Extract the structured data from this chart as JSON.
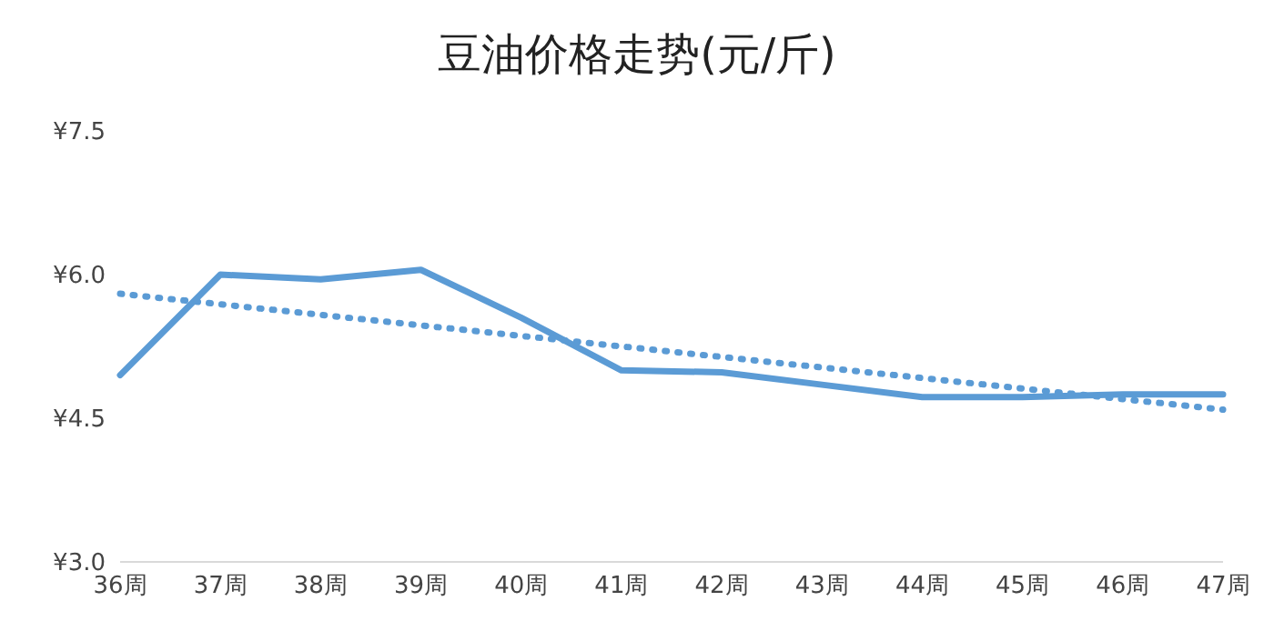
{
  "chart_data": {
    "type": "line",
    "title": "豆油价格走势(元/斤)",
    "categories": [
      "36周",
      "37周",
      "38周",
      "39周",
      "40周",
      "41周",
      "42周",
      "43周",
      "44周",
      "45周",
      "46周",
      "47周"
    ],
    "series": [
      {
        "color": "#5b9bd5",
        "values": [
          4.95,
          6.0,
          5.95,
          6.05,
          5.55,
          5.0,
          4.98,
          4.85,
          4.72,
          4.72,
          4.75,
          4.75
        ],
        "line_style": "solid"
      },
      {
        "type": "line",
        "color": "#5b9bd5",
        "values": [
          5.8,
          5.69,
          5.58,
          5.47,
          5.36,
          5.25,
          5.14,
          5.03,
          4.92,
          4.81,
          4.7,
          4.59
        ],
        "line_style": "dotted"
      }
    ],
    "ylim": [
      3.0,
      7.5
    ],
    "yticks": [
      {
        "value": 3.0,
        "label": "¥3.0"
      },
      {
        "value": 4.5,
        "label": "¥4.5"
      },
      {
        "value": 6.0,
        "label": "¥6.0"
      },
      {
        "value": 7.5,
        "label": "¥7.5"
      }
    ],
    "grid": false,
    "legend": false,
    "marker": "none"
  }
}
